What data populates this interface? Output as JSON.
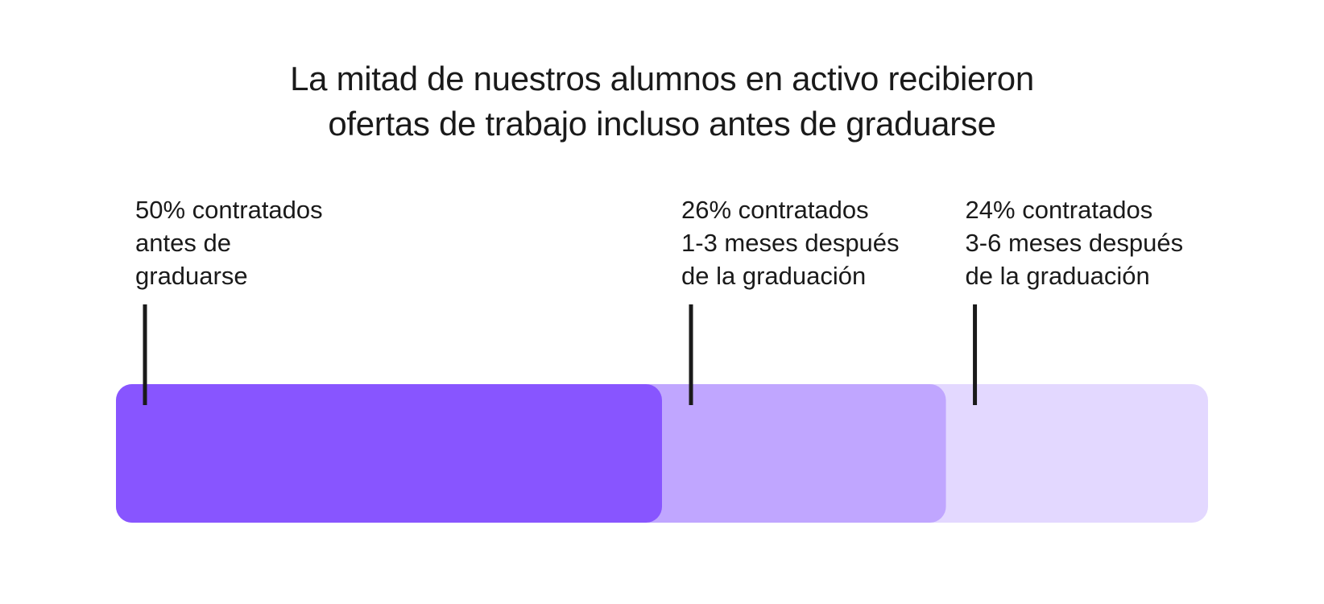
{
  "title_lines": [
    "La mitad de nuestros alumnos en activo recibieron",
    "ofertas de trabajo incluso antes de graduarse"
  ],
  "chart_data": {
    "type": "bar",
    "orientation": "horizontal-stacked",
    "title": "La mitad de nuestros alumnos en activo recibieron ofertas de trabajo incluso antes de graduarse",
    "unit": "%",
    "total": 100,
    "segments": [
      {
        "value": 50,
        "label_lines": [
          "50% contratados",
          "antes de",
          "graduarse"
        ],
        "color": "#8855ff"
      },
      {
        "value": 26,
        "label_lines": [
          "26% contratados",
          "1-3 meses después",
          "de la graduación"
        ],
        "color": "#c0a6ff"
      },
      {
        "value": 24,
        "label_lines": [
          "24% contratados",
          "3-6 meses después",
          "de la graduación"
        ],
        "color": "#e3d8ff"
      }
    ]
  }
}
